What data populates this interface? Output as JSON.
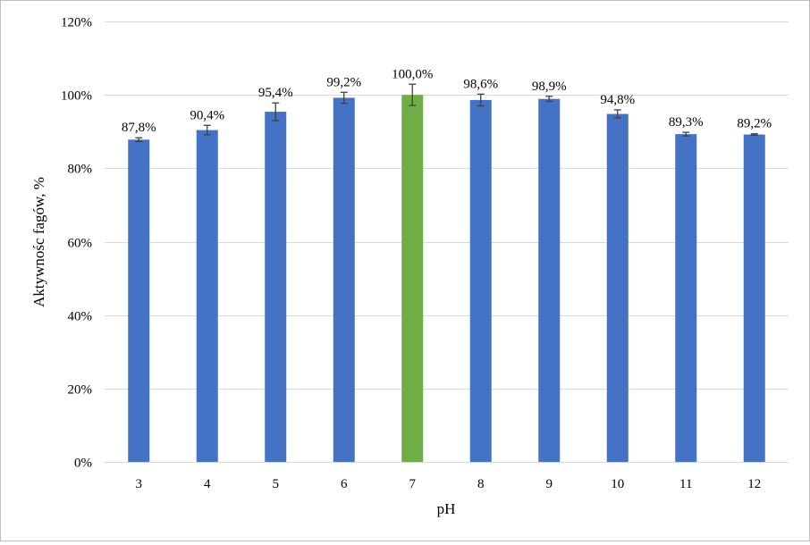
{
  "chart_data": {
    "type": "bar",
    "title": "",
    "xlabel": "pH",
    "ylabel": "Aktywnośc fagów, %",
    "categories": [
      "3",
      "4",
      "5",
      "6",
      "7",
      "8",
      "9",
      "10",
      "11",
      "12"
    ],
    "values": [
      87.8,
      90.4,
      95.4,
      99.2,
      100.0,
      98.6,
      98.9,
      94.8,
      89.3,
      89.2
    ],
    "errors": [
      0.5,
      1.3,
      2.4,
      1.5,
      2.9,
      1.6,
      0.7,
      1.1,
      0.5,
      0.2
    ],
    "data_labels": [
      "87,8%",
      "90,4%",
      "95,4%",
      "99,2%",
      "100,0%",
      "98,6%",
      "98,9%",
      "94,8%",
      "89,3%",
      "89,2%"
    ],
    "ylim": [
      0,
      120
    ],
    "yticks": [
      0,
      20,
      40,
      60,
      80,
      100,
      120
    ],
    "ytick_labels": [
      "0%",
      "20%",
      "40%",
      "60%",
      "80%",
      "100%",
      "120%"
    ],
    "grid": true,
    "legend": "none",
    "colors": {
      "default_bar": "#4472c4",
      "highlight_bar": "#70ad47",
      "highlight_index": 4,
      "gridline": "#d9d9d9",
      "error_bar": "#404040"
    }
  }
}
